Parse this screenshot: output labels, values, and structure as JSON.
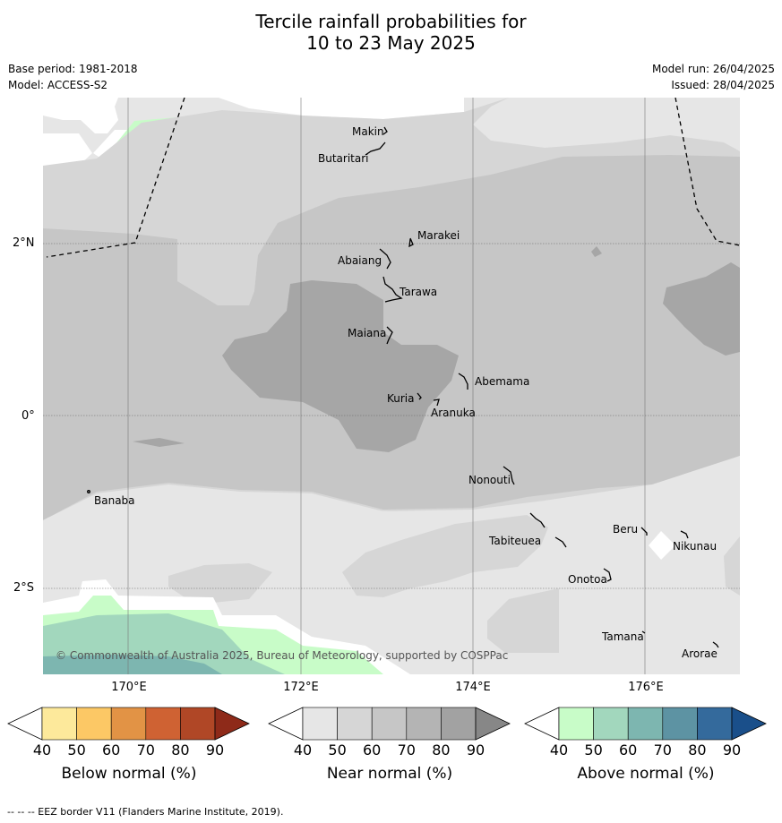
{
  "title_line1": "Tercile rainfall probabilities for",
  "title_line2": "10 to 23 May 2025",
  "base_period": "Base period: 1981-2018",
  "model": "Model: ACCESS-S2",
  "model_run": "Model run: 26/04/2025",
  "issued": "Issued: 28/04/2025",
  "copyright": "© Commonwealth of Australia 2025, Bureau of Meteorology, supported by COSPPac",
  "lat_labels": [
    "2°N",
    "0°",
    "2°S"
  ],
  "lon_labels": [
    "170°E",
    "172°E",
    "174°E",
    "176°E"
  ],
  "places": [
    {
      "name": "Makin"
    },
    {
      "name": "Butaritari"
    },
    {
      "name": "Marakei"
    },
    {
      "name": "Abaiang"
    },
    {
      "name": "Tarawa"
    },
    {
      "name": "Maiana"
    },
    {
      "name": "Abemama"
    },
    {
      "name": "Kuria"
    },
    {
      "name": "Aranuka"
    },
    {
      "name": "Nonouti"
    },
    {
      "name": "Banaba"
    },
    {
      "name": "Tabiteuea"
    },
    {
      "name": "Beru"
    },
    {
      "name": "Nikunau"
    },
    {
      "name": "Onotoa"
    },
    {
      "name": "Tamana"
    },
    {
      "name": "Arorae"
    }
  ],
  "colorbars": [
    {
      "title": "Below normal (%)",
      "ticks": [
        "40",
        "50",
        "60",
        "70",
        "80",
        "90"
      ],
      "colors": [
        "#ffffff",
        "#fde99b",
        "#fcc865",
        "#e29345",
        "#cf6233",
        "#b04726",
        "#8e2a19"
      ]
    },
    {
      "title": "Near normal (%)",
      "ticks": [
        "40",
        "50",
        "60",
        "70",
        "80",
        "90"
      ],
      "colors": [
        "#ffffff",
        "#e6e6e6",
        "#d6d6d6",
        "#c6c6c6",
        "#b4b4b4",
        "#a2a2a2",
        "#878787"
      ]
    },
    {
      "title": "Above normal (%)",
      "ticks": [
        "40",
        "50",
        "60",
        "70",
        "80",
        "90"
      ],
      "colors": [
        "#ffffff",
        "#c8fcc8",
        "#a2d7bd",
        "#7db6b0",
        "#5d93a3",
        "#346a9c",
        "#1a4f8a"
      ]
    }
  ],
  "footnote": "--  --  -- EEZ border V11 (Flanders Marine Institute, 2019)."
}
